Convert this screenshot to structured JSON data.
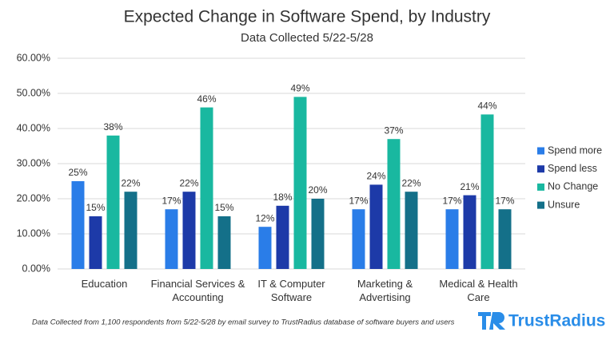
{
  "chart_data": {
    "type": "bar",
    "title": "Expected Change in Software Spend, by Industry",
    "subtitle": "Data Collected 5/22-5/28",
    "categories": [
      "Education",
      "Financial Services & Accounting",
      "IT & Computer Software",
      "Marketing & Advertising",
      "Medical & Health Care"
    ],
    "series": [
      {
        "name": "Spend more",
        "color": "#2a7de8",
        "values": [
          25,
          17,
          12,
          17,
          17
        ],
        "value_labels": [
          "25%",
          "17%",
          "12%",
          "17%",
          "17%"
        ]
      },
      {
        "name": "Spend less",
        "color": "#1d3aa8",
        "values": [
          15,
          22,
          18,
          24,
          21
        ],
        "value_labels": [
          "15%",
          "22%",
          "18%",
          "24%",
          "21%"
        ]
      },
      {
        "name": "No Change",
        "color": "#19b8a0",
        "values": [
          38,
          46,
          49,
          37,
          44
        ],
        "value_labels": [
          "38%",
          "46%",
          "49%",
          "37%",
          "44%"
        ]
      },
      {
        "name": "Unsure",
        "color": "#147089",
        "values": [
          22,
          15,
          20,
          22,
          17
        ],
        "value_labels": [
          "22%",
          "15%",
          "20%",
          "22%",
          "17%"
        ]
      }
    ],
    "ylim": [
      0,
      60
    ],
    "yticks": [
      {
        "value": 0,
        "label": "0.00%"
      },
      {
        "value": 10,
        "label": "10.00%"
      },
      {
        "value": 20,
        "label": "20.00%"
      },
      {
        "value": 30,
        "label": "30.00%"
      },
      {
        "value": 40,
        "label": "40.00%"
      },
      {
        "value": 50,
        "label": "50.00%"
      },
      {
        "value": 60,
        "label": "60.00%"
      }
    ],
    "grid": true,
    "legend": "right",
    "note": "Data Collected from 1,100 respondents from 5/22-5/28 by email survey to TrustRadius database of software buyers and users",
    "logo": "TrustRadius"
  }
}
